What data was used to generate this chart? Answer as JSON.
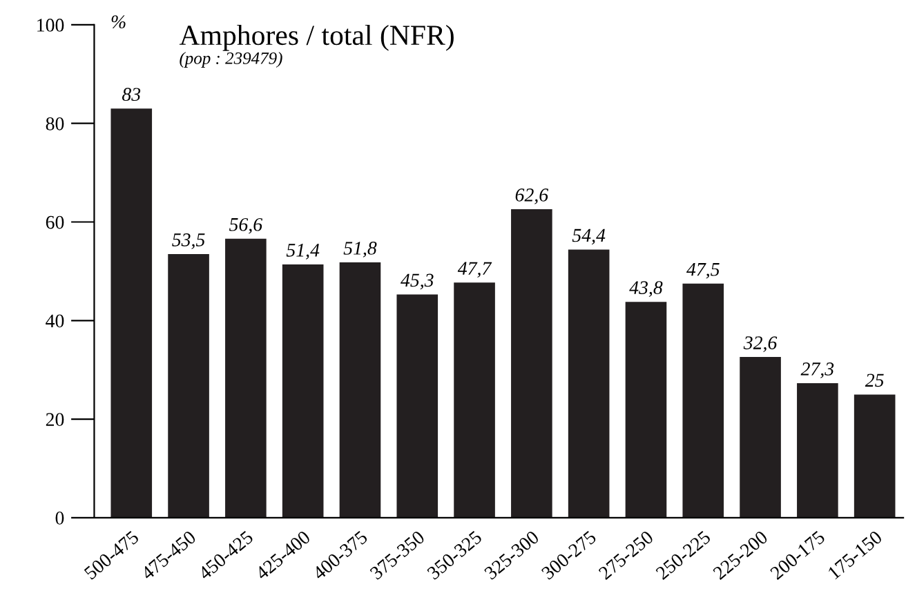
{
  "chart_data": {
    "type": "bar",
    "title": "Amphores / total (NFR)",
    "subtitle": "(pop : 239479)",
    "ylabel": "%",
    "categories": [
      "500-475",
      "475-450",
      "450-425",
      "425-400",
      "400-375",
      "375-350",
      "350-325",
      "325-300",
      "300-275",
      "275-250",
      "250-225",
      "225-200",
      "200-175",
      "175-150"
    ],
    "values": [
      83,
      53.5,
      56.6,
      51.4,
      51.8,
      45.3,
      47.7,
      62.6,
      54.4,
      43.8,
      47.5,
      32.6,
      27.3,
      25
    ],
    "value_labels": [
      "83",
      "53,5",
      "56,6",
      "51,4",
      "51,8",
      "45,3",
      "47,7",
      "62,6",
      "54,4",
      "43,8",
      "47,5",
      "32,6",
      "27,3",
      "25"
    ],
    "color": "#231f20",
    "ylim": [
      0,
      100
    ],
    "yticks": [
      0,
      20,
      40,
      60,
      80,
      100
    ],
    "grid": false,
    "legend": false
  }
}
